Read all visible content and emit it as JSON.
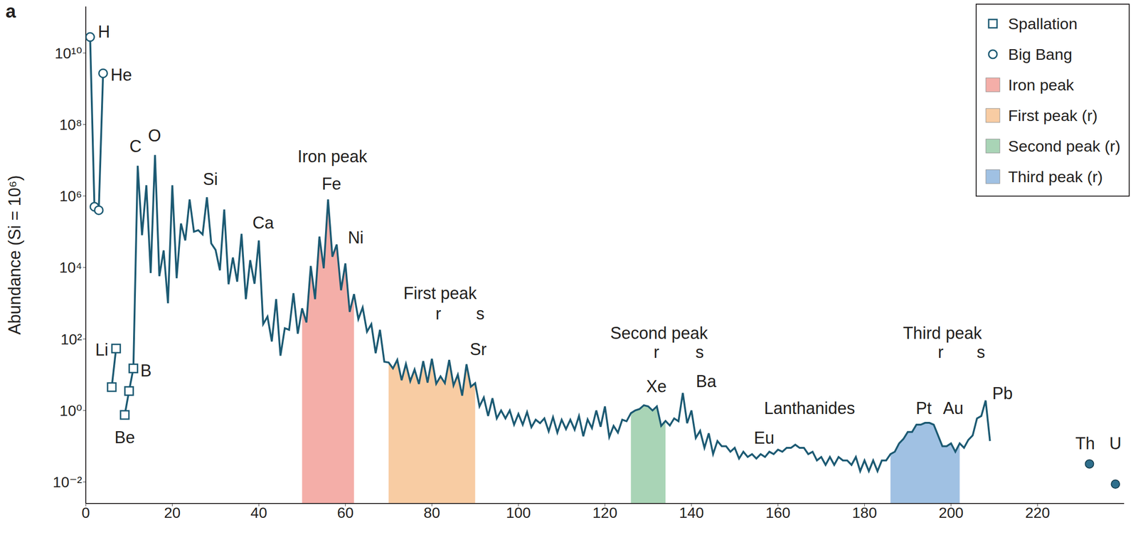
{
  "panel_label": "a",
  "chart_data": {
    "type": "line",
    "log": "y",
    "y_label": "Abundance (Si = 10⁶)",
    "color": "#1c5a73",
    "legend": "top right",
    "xlim": [
      0,
      240
    ],
    "xticks": [
      0,
      20,
      40,
      60,
      80,
      100,
      120,
      140,
      160,
      180,
      200,
      220
    ],
    "ylim": [
      0.0025,
      200000000000.0
    ],
    "yticks": [
      {
        "value": 0.01,
        "label": "10⁻²"
      },
      {
        "value": 1,
        "label": "10⁰"
      },
      {
        "value": 100,
        "label": "10²"
      },
      {
        "value": 10000,
        "label": "10⁴"
      },
      {
        "value": 1000000,
        "label": "10⁶"
      },
      {
        "value": 100000000,
        "label": "10⁸"
      },
      {
        "value": 10000000000,
        "label": "10¹⁰"
      }
    ],
    "x": [
      1,
      2,
      3,
      4,
      5,
      6,
      7,
      8,
      9,
      10,
      11,
      12,
      13,
      14,
      15,
      16,
      17,
      18,
      19,
      20,
      21,
      22,
      23,
      24,
      25,
      26,
      27,
      28,
      29,
      30,
      31,
      32,
      33,
      34,
      35,
      36,
      37,
      38,
      39,
      40,
      41,
      42,
      43,
      44,
      45,
      46,
      47,
      48,
      49,
      50,
      51,
      52,
      53,
      54,
      55,
      56,
      57,
      58,
      59,
      60,
      61,
      62,
      63,
      64,
      65,
      66,
      67,
      68,
      69,
      70,
      71,
      72,
      73,
      74,
      75,
      76,
      77,
      78,
      79,
      80,
      81,
      82,
      83,
      84,
      85,
      86,
      87,
      88,
      89,
      90,
      91,
      92,
      93,
      94,
      95,
      96,
      97,
      98,
      99,
      100,
      101,
      102,
      103,
      104,
      105,
      106,
      107,
      108,
      109,
      110,
      111,
      112,
      113,
      114,
      115,
      116,
      117,
      118,
      119,
      120,
      121,
      122,
      123,
      124,
      125,
      126,
      127,
      128,
      129,
      130,
      131,
      132,
      133,
      134,
      135,
      136,
      137,
      138,
      139,
      140,
      141,
      142,
      143,
      144,
      145,
      146,
      147,
      148,
      149,
      150,
      151,
      152,
      153,
      154,
      155,
      156,
      157,
      158,
      159,
      160,
      161,
      162,
      163,
      164,
      165,
      166,
      167,
      168,
      169,
      170,
      171,
      172,
      173,
      174,
      175,
      176,
      177,
      178,
      179,
      180,
      181,
      182,
      183,
      184,
      185,
      186,
      187,
      188,
      189,
      190,
      191,
      192,
      193,
      194,
      195,
      196,
      197,
      198,
      199,
      200,
      201,
      202,
      203,
      204,
      205,
      206,
      207,
      208,
      209
    ],
    "values": [
      28000000000.0,
      500000.0,
      400000.0,
      2700000000.0,
      null,
      4.5,
      54,
      null,
      0.75,
      3.5,
      15,
      7000000.0,
      80000.0,
      2000000.0,
      7000,
      14000000.0,
      5700,
      30000,
      1000,
      2000000.0,
      5000,
      170000,
      57000,
      800000,
      100000,
      110000,
      84000,
      920000,
      47000,
      31000,
      8300,
      420000,
      3400,
      19000,
      4000,
      87000,
      1300,
      16000,
      3500,
      57000,
      260,
      420,
      85,
      1300,
      34,
      200,
      180,
      1900,
      140,
      720,
      290,
      11000,
      1300,
      73000,
      9500,
      800000,
      20000,
      44000,
      2300,
      13000,
      570,
      1800,
      360,
      760,
      160,
      260,
      40,
      180,
      23,
      22,
      15,
      26,
      7,
      20,
      6.6,
      14,
      5.5,
      24,
      6,
      28,
      5.6,
      9,
      5.8,
      26,
      5,
      10,
      2.6,
      19.6,
      4.6,
      5.8,
      1.3,
      2.3,
      0.7,
      2.2,
      0.6,
      1.0,
      0.6,
      1.0,
      0.4,
      0.8,
      0.4,
      0.9,
      0.34,
      0.55,
      0.44,
      0.6,
      0.26,
      0.65,
      0.24,
      0.55,
      0.3,
      0.55,
      0.29,
      0.7,
      0.19,
      0.56,
      0.32,
      1.0,
      0.35,
      1.3,
      0.18,
      0.37,
      0.24,
      0.55,
      0.5,
      0.84,
      1.0,
      1.1,
      1.4,
      1.3,
      1.0,
      1.3,
      0.37,
      0.51,
      0.38,
      0.6,
      0.5,
      3.1,
      0.44,
      1.0,
      0.17,
      0.27,
      0.09,
      0.23,
      0.06,
      0.14,
      0.1,
      0.1,
      0.07,
      0.09,
      0.045,
      0.07,
      0.05,
      0.06,
      0.045,
      0.06,
      0.05,
      0.07,
      0.06,
      0.08,
      0.07,
      0.09,
      0.09,
      0.11,
      0.09,
      0.09,
      0.06,
      0.07,
      0.04,
      0.05,
      0.03,
      0.05,
      0.03,
      0.05,
      0.04,
      0.04,
      0.03,
      0.05,
      0.02,
      0.04,
      0.02,
      0.04,
      0.02,
      0.04,
      0.04,
      0.06,
      0.07,
      0.12,
      0.16,
      0.25,
      0.25,
      0.4,
      0.4,
      0.45,
      0.45,
      0.4,
      0.2,
      0.1,
      0.1,
      0.12,
      0.07,
      0.12,
      0.09,
      0.15,
      0.2,
      0.6,
      0.7,
      1.9,
      0.14
    ],
    "series": [
      {
        "name": "Spallation",
        "type": "scatter",
        "marker": "square",
        "color": "#1c5a73",
        "x": [
          6,
          7,
          9,
          10,
          11
        ]
      },
      {
        "name": "Big Bang",
        "type": "scatter",
        "marker": "circle",
        "color": "#1c5a73",
        "x": [
          1,
          2,
          3,
          4
        ]
      },
      {
        "type": "scatter",
        "marker": "dot",
        "color": "#2f6f8c",
        "x": [
          232,
          238
        ],
        "values": [
          0.032,
          0.0087
        ]
      }
    ],
    "regions": [
      {
        "name": "Iron peak",
        "color": "#f4aea8",
        "range": [
          50,
          62
        ]
      },
      {
        "name": "First peak (r)",
        "color": "#f8cca3",
        "range": [
          70,
          90
        ]
      },
      {
        "name": "Second peak (r)",
        "color": "#a9d4b6",
        "range": [
          126,
          134
        ]
      },
      {
        "name": "Third peak (r)",
        "color": "#a0c1e3",
        "range": [
          186,
          202
        ]
      }
    ],
    "annotations": [
      {
        "text": "H",
        "x": 4.2,
        "y": 40000000000.0
      },
      {
        "text": "He",
        "x": 8.2,
        "y": 2500000000.0
      },
      {
        "text": "Li",
        "x": 3.7,
        "y": 50
      },
      {
        "text": "Be",
        "x": 9,
        "y": 0.18
      },
      {
        "text": "B",
        "x": 13.9,
        "y": 13
      },
      {
        "text": "C",
        "x": 11.5,
        "y": 25000000.0
      },
      {
        "text": "O",
        "x": 15.9,
        "y": 50000000.0
      },
      {
        "text": "Si",
        "x": 28.8,
        "y": 3000000.0
      },
      {
        "text": "Ca",
        "x": 41,
        "y": 180000.0
      },
      {
        "text": "Iron peak",
        "x": 57,
        "y": 13000000.0
      },
      {
        "text": "Fe",
        "x": 56.8,
        "y": 2200000.0
      },
      {
        "text": "Ni",
        "x": 62.4,
        "y": 70000.0
      },
      {
        "text": "First peak",
        "x": 81.9,
        "y": 1900
      },
      {
        "text": "r",
        "x": 81.5,
        "y": 510
      },
      {
        "text": "s",
        "x": 91.2,
        "y": 510
      },
      {
        "text": "Sr",
        "x": 90.7,
        "y": 51
      },
      {
        "text": "Second peak",
        "x": 132.5,
        "y": 145
      },
      {
        "text": "r",
        "x": 131.9,
        "y": 43
      },
      {
        "text": "s",
        "x": 141.9,
        "y": 43
      },
      {
        "text": "Xe",
        "x": 131.9,
        "y": 4.7
      },
      {
        "text": "Ba",
        "x": 143.4,
        "y": 6.5
      },
      {
        "text": "Lanthanides",
        "x": 167.3,
        "y": 1.15
      },
      {
        "text": "Eu",
        "x": 156.8,
        "y": 0.17
      },
      {
        "text": "Third peak",
        "x": 198,
        "y": 145
      },
      {
        "text": "r",
        "x": 197.6,
        "y": 43
      },
      {
        "text": "s",
        "x": 206.9,
        "y": 43
      },
      {
        "text": "Pt",
        "x": 193.7,
        "y": 1.15
      },
      {
        "text": "Au",
        "x": 200.5,
        "y": 1.15
      },
      {
        "text": "Pb",
        "x": 211.9,
        "y": 3
      },
      {
        "text": "Th",
        "x": 231,
        "y": 0.12
      },
      {
        "text": "U",
        "x": 238,
        "y": 0.12
      }
    ]
  }
}
